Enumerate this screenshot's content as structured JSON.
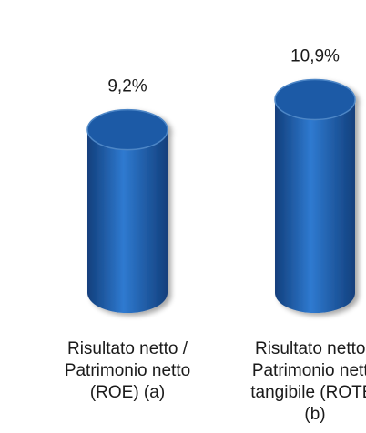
{
  "chart_data": {
    "type": "bar",
    "style": "3d-cylinder",
    "categories": [
      "Risultato netto / Patrimonio netto (ROE) (a)",
      "Risultato netto / Patrimonio netto tangibile (ROTE) (b)"
    ],
    "category_lines": [
      [
        "Risultato netto /",
        "Patrimonio netto",
        "(ROE) (a)"
      ],
      [
        "Risultato netto /",
        "Patrimonio netto",
        "tangibile (ROTE)",
        "(b)"
      ]
    ],
    "values": [
      9.2,
      10.9
    ],
    "data_labels": [
      "9,2%",
      "10,9%"
    ],
    "unit": "%",
    "grid": false,
    "legend": "none",
    "colors": {
      "bar_main": "#1f5fae",
      "bar_light": "#2f7ad0",
      "bar_dark": "#123f7c",
      "top_ellipse": "#1c5aa6",
      "top_rim": "#4d86c6"
    }
  }
}
